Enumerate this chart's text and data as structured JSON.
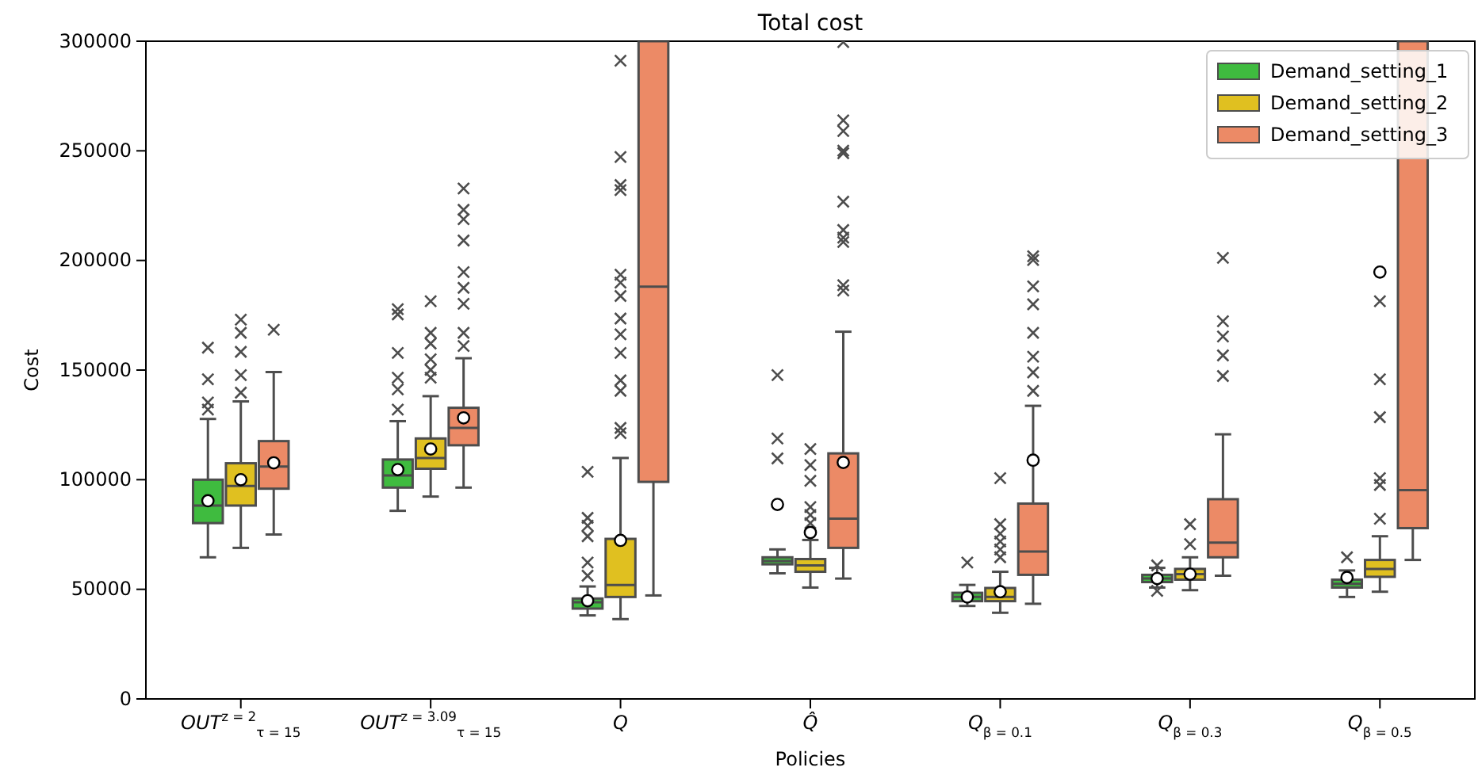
{
  "chart_data": {
    "type": "box",
    "title": "Total cost",
    "xlabel": "Policies",
    "ylabel": "Cost",
    "categories": [
      "OUT$^{z = 2}$$_{τ = 15}$",
      "OUT$^{z = 3.09}$$_{τ = 15}$",
      "Q",
      "Q̂",
      "Q$_{β = 0.1}$",
      "Q$_{β = 0.3}$",
      "Q$_{β = 0.5}$"
    ],
    "ylim": [
      0,
      300000
    ],
    "yticks": [
      0,
      50000,
      100000,
      150000,
      200000,
      250000,
      300000
    ],
    "grid": false,
    "legend": "top right",
    "series": [
      {
        "name": "Demand_setting_1",
        "color": "#3fbb3f",
        "boxes": [
          {
            "low": 64600,
            "q1": 80200,
            "median": 88200,
            "q3": 100000,
            "high": 127700,
            "mean": 90400,
            "outliers": [
              132000,
              135200,
              145800,
              160200
            ]
          },
          {
            "low": 85800,
            "q1": 96400,
            "median": 101900,
            "q3": 109200,
            "high": 126700,
            "mean": 104600,
            "outliers": [
              132000,
              141200,
              146500,
              157800,
              175400,
              177800
            ]
          },
          {
            "low": 38100,
            "q1": 41200,
            "median": 44100,
            "q3": 45800,
            "high": 51300,
            "mean": 44800,
            "outliers": [
              56200,
              62200,
              74200,
              79000,
              82600,
              103600
            ]
          },
          {
            "low": 57300,
            "q1": 61400,
            "median": 62900,
            "q3": 64600,
            "high": 68200,
            "mean": 88700,
            "outliers": [
              109700,
              118800,
              147700
            ]
          },
          {
            "low": 42400,
            "q1": 44600,
            "median": 46500,
            "q3": 48400,
            "high": 52000,
            "mean": 46500,
            "outliers": [
              62200
            ]
          },
          {
            "low": 50800,
            "q1": 53300,
            "median": 54900,
            "q3": 56600,
            "high": 59800,
            "mean": 54900,
            "outliers": [
              49300,
              60900
            ]
          },
          {
            "low": 46500,
            "q1": 50800,
            "median": 52500,
            "q3": 54400,
            "high": 58600,
            "mean": 55400,
            "outliers": [
              64600
            ]
          }
        ]
      },
      {
        "name": "Demand_setting_2",
        "color": "#e0c020",
        "boxes": [
          {
            "low": 68900,
            "q1": 88200,
            "median": 97100,
            "q3": 107500,
            "high": 135700,
            "mean": 100000,
            "outliers": [
              139700,
              147700,
              158300,
              167000,
              173000
            ]
          },
          {
            "low": 92300,
            "q1": 105000,
            "median": 109900,
            "q3": 118800,
            "high": 138100,
            "mean": 114000,
            "outliers": [
              146500,
              150100,
              154900,
              162100,
              167000,
              181400
            ]
          },
          {
            "low": 36400,
            "q1": 46500,
            "median": 52000,
            "q3": 73000,
            "high": 109900,
            "mean": 72300,
            "outliers": [
              121200,
              123600,
              140500,
              145300,
              157800,
              166300,
              173500,
              183800,
              189900,
              193500,
              232100,
              234400,
              247200,
              291100
            ]
          },
          {
            "low": 50800,
            "q1": 58000,
            "median": 60900,
            "q3": 63800,
            "high": 72500,
            "mean": 75900,
            "outliers": [
              80200,
              83900,
              87500,
              99500,
              106700,
              114000
            ]
          },
          {
            "low": 39300,
            "q1": 44600,
            "median": 46500,
            "q3": 50600,
            "high": 58000,
            "mean": 48900,
            "outliers": [
              64600,
              68200,
              71800,
              75400,
              79700,
              100700
            ]
          },
          {
            "low": 49600,
            "q1": 54400,
            "median": 56900,
            "q3": 59300,
            "high": 64600,
            "mean": 56900,
            "outliers": [
              70600,
              79700
            ]
          },
          {
            "low": 48900,
            "q1": 55700,
            "median": 59300,
            "q3": 63400,
            "high": 74200,
            "mean": 194700,
            "outliers": [
              82200,
              97600,
              100700,
              128500,
              145800,
              181400
            ]
          }
        ]
      },
      {
        "name": "Demand_setting_3",
        "color": "#ec8a66",
        "boxes": [
          {
            "low": 75000,
            "q1": 95900,
            "median": 106000,
            "q3": 117600,
            "high": 149100,
            "mean": 107700,
            "outliers": [
              168400
            ]
          },
          {
            "low": 96400,
            "q1": 115700,
            "median": 123600,
            "q3": 132800,
            "high": 155400,
            "mean": 128200,
            "outliers": [
              161000,
              167000,
              180200,
              187500,
              194700,
              209100,
              218800,
              223100,
              232800
            ]
          },
          {
            "low": 47200,
            "q1": 99000,
            "median": 188000,
            "q3": 300000,
            "high": 300000
          },
          {
            "low": 54900,
            "q1": 68900,
            "median": 82200,
            "q3": 112000,
            "high": 167500,
            "mean": 107900,
            "outliers": [
              186300,
              188700,
              208400,
              210400,
              213900,
              226800,
              248900,
              250100,
              259000,
              263900,
              299600
            ]
          },
          {
            "low": 43400,
            "q1": 56600,
            "median": 67200,
            "q3": 89100,
            "high": 133700,
            "mean": 108900,
            "outliers": [
              140500,
              148900,
              156100,
              167000,
              180000,
              188200,
              200200,
              201900
            ]
          },
          {
            "low": 56200,
            "q1": 64600,
            "median": 71300,
            "q3": 91100,
            "high": 120700,
            "outliers": [
              147300,
              156700,
              165300,
              172300,
              201200
            ]
          },
          {
            "low": 63400,
            "q1": 77900,
            "median": 95200,
            "q3": 300000,
            "high": 300000
          }
        ]
      }
    ]
  }
}
